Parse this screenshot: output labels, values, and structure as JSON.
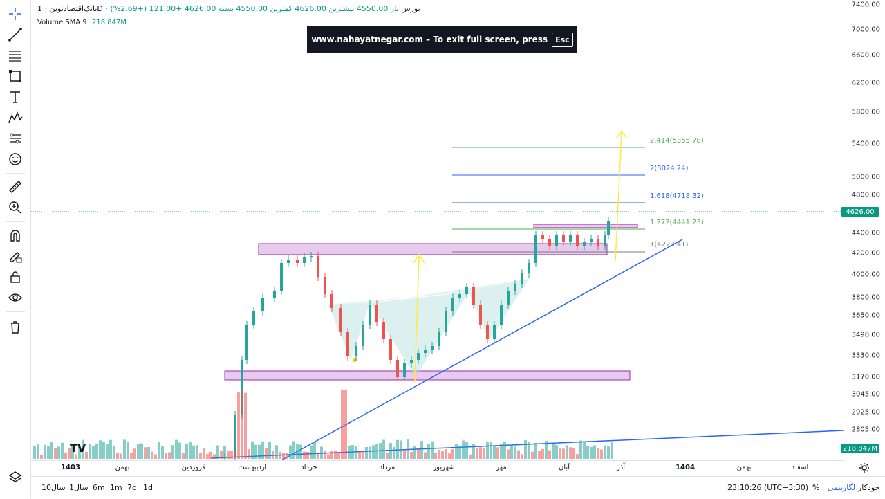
{
  "header": {
    "symbol": "بانک‌اقتصادنوین",
    "timeframe": "1D",
    "exchange": "بورس",
    "ohlc_text": "باز 4550.00 بیشترین 4626.00 کمترین 4550.00 بسته 4626.00",
    "change": "+121.00 (+2.69%)"
  },
  "volume_indicator": {
    "name": "Volume",
    "ma": "SMA",
    "length": "9",
    "value": "218.847M"
  },
  "toast": {
    "text": "www.nahayatnegar.com – To exit full screen, press",
    "key": "Esc"
  },
  "price_axis": {
    "ticks": [
      "7400.00",
      "7000.00",
      "6600.00",
      "6200.00",
      "5800.00",
      "5400.00",
      "5000.00",
      "4800.00",
      "4400.00",
      "4200.00",
      "4000.00",
      "3800.00",
      "3650.00",
      "3490.00",
      "3330.00",
      "3170.00",
      "3045.00",
      "2925.00",
      "2805.00"
    ],
    "last_price": "4626.00",
    "volume_label": "218.847M",
    "last_price_color": "#089981",
    "volume_label_color": "#089981"
  },
  "fib_levels": [
    {
      "label": "2.414(5355.78)",
      "color": "#4caf50"
    },
    {
      "label": "2(5024.24)",
      "color": "#2962ff"
    },
    {
      "label": "1.618(4718.32)",
      "color": "#2962ff"
    },
    {
      "label": "1.272(4441.23)",
      "color": "#4caf50"
    },
    {
      "label": "1(4223.41)",
      "color": "#787b86"
    }
  ],
  "time_axis": [
    "1403",
    "بهمن",
    "فروردین",
    "اردیبهشت",
    "خرداد",
    "مرداد",
    "شهریور",
    "مهر",
    "آبان",
    "آذر",
    "1404",
    "بهمن",
    "اسفند"
  ],
  "bottom_bar": {
    "ranges": [
      "1d",
      "7d",
      "1m",
      "6m",
      "1سال",
      "10سال"
    ],
    "clock": "23:10:26 (UTC+3:30)",
    "percent": "%",
    "log": "لگاریتمی",
    "auto": "خودکار"
  },
  "logo_text": "TV",
  "colors": {
    "up": "#26a69a",
    "down": "#ef5350",
    "zone": "#e1bee7",
    "trend": "#2962ff",
    "arrow": "#ffeb3b"
  }
}
